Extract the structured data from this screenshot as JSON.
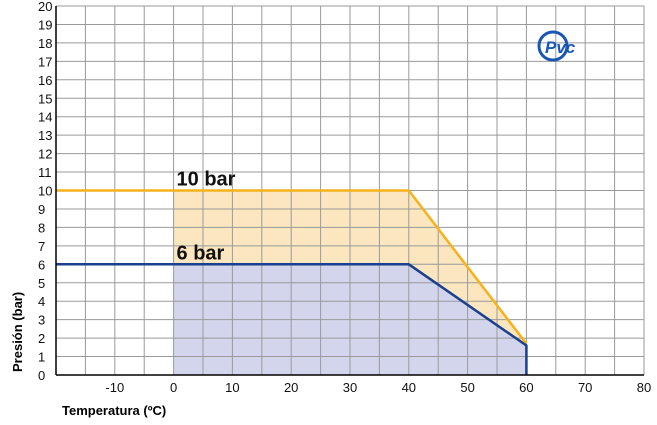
{
  "chart_data": {
    "type": "line",
    "xlabel": "Temperatura (ºC)",
    "ylabel": "Presión (bar)",
    "xlim": [
      -20,
      80
    ],
    "ylim": [
      0,
      20
    ],
    "x_ticks": [
      -10,
      0,
      10,
      20,
      30,
      40,
      50,
      60,
      70,
      80
    ],
    "y_ticks": [
      0,
      1,
      2,
      3,
      4,
      5,
      6,
      7,
      8,
      9,
      10,
      11,
      12,
      13,
      14,
      15,
      16,
      17,
      18,
      19,
      20
    ],
    "grid": true,
    "series": [
      {
        "name": "10 bar",
        "color": "#f5b21b",
        "fill": "#fbe6bf",
        "points": [
          [
            -20,
            10
          ],
          [
            40,
            10
          ],
          [
            60,
            1.7
          ]
        ],
        "shaded_from_x": 0
      },
      {
        "name": "6 bar",
        "color": "#1a3f8f",
        "fill": "#d3d5ec",
        "points": [
          [
            -20,
            6
          ],
          [
            40,
            6
          ],
          [
            60,
            1.6
          ],
          [
            60,
            0
          ]
        ],
        "shaded_from_x": 0
      }
    ]
  },
  "logo": {
    "text": "Pvc",
    "icon": "pvc-logo-icon",
    "color": "#1a57b5"
  }
}
